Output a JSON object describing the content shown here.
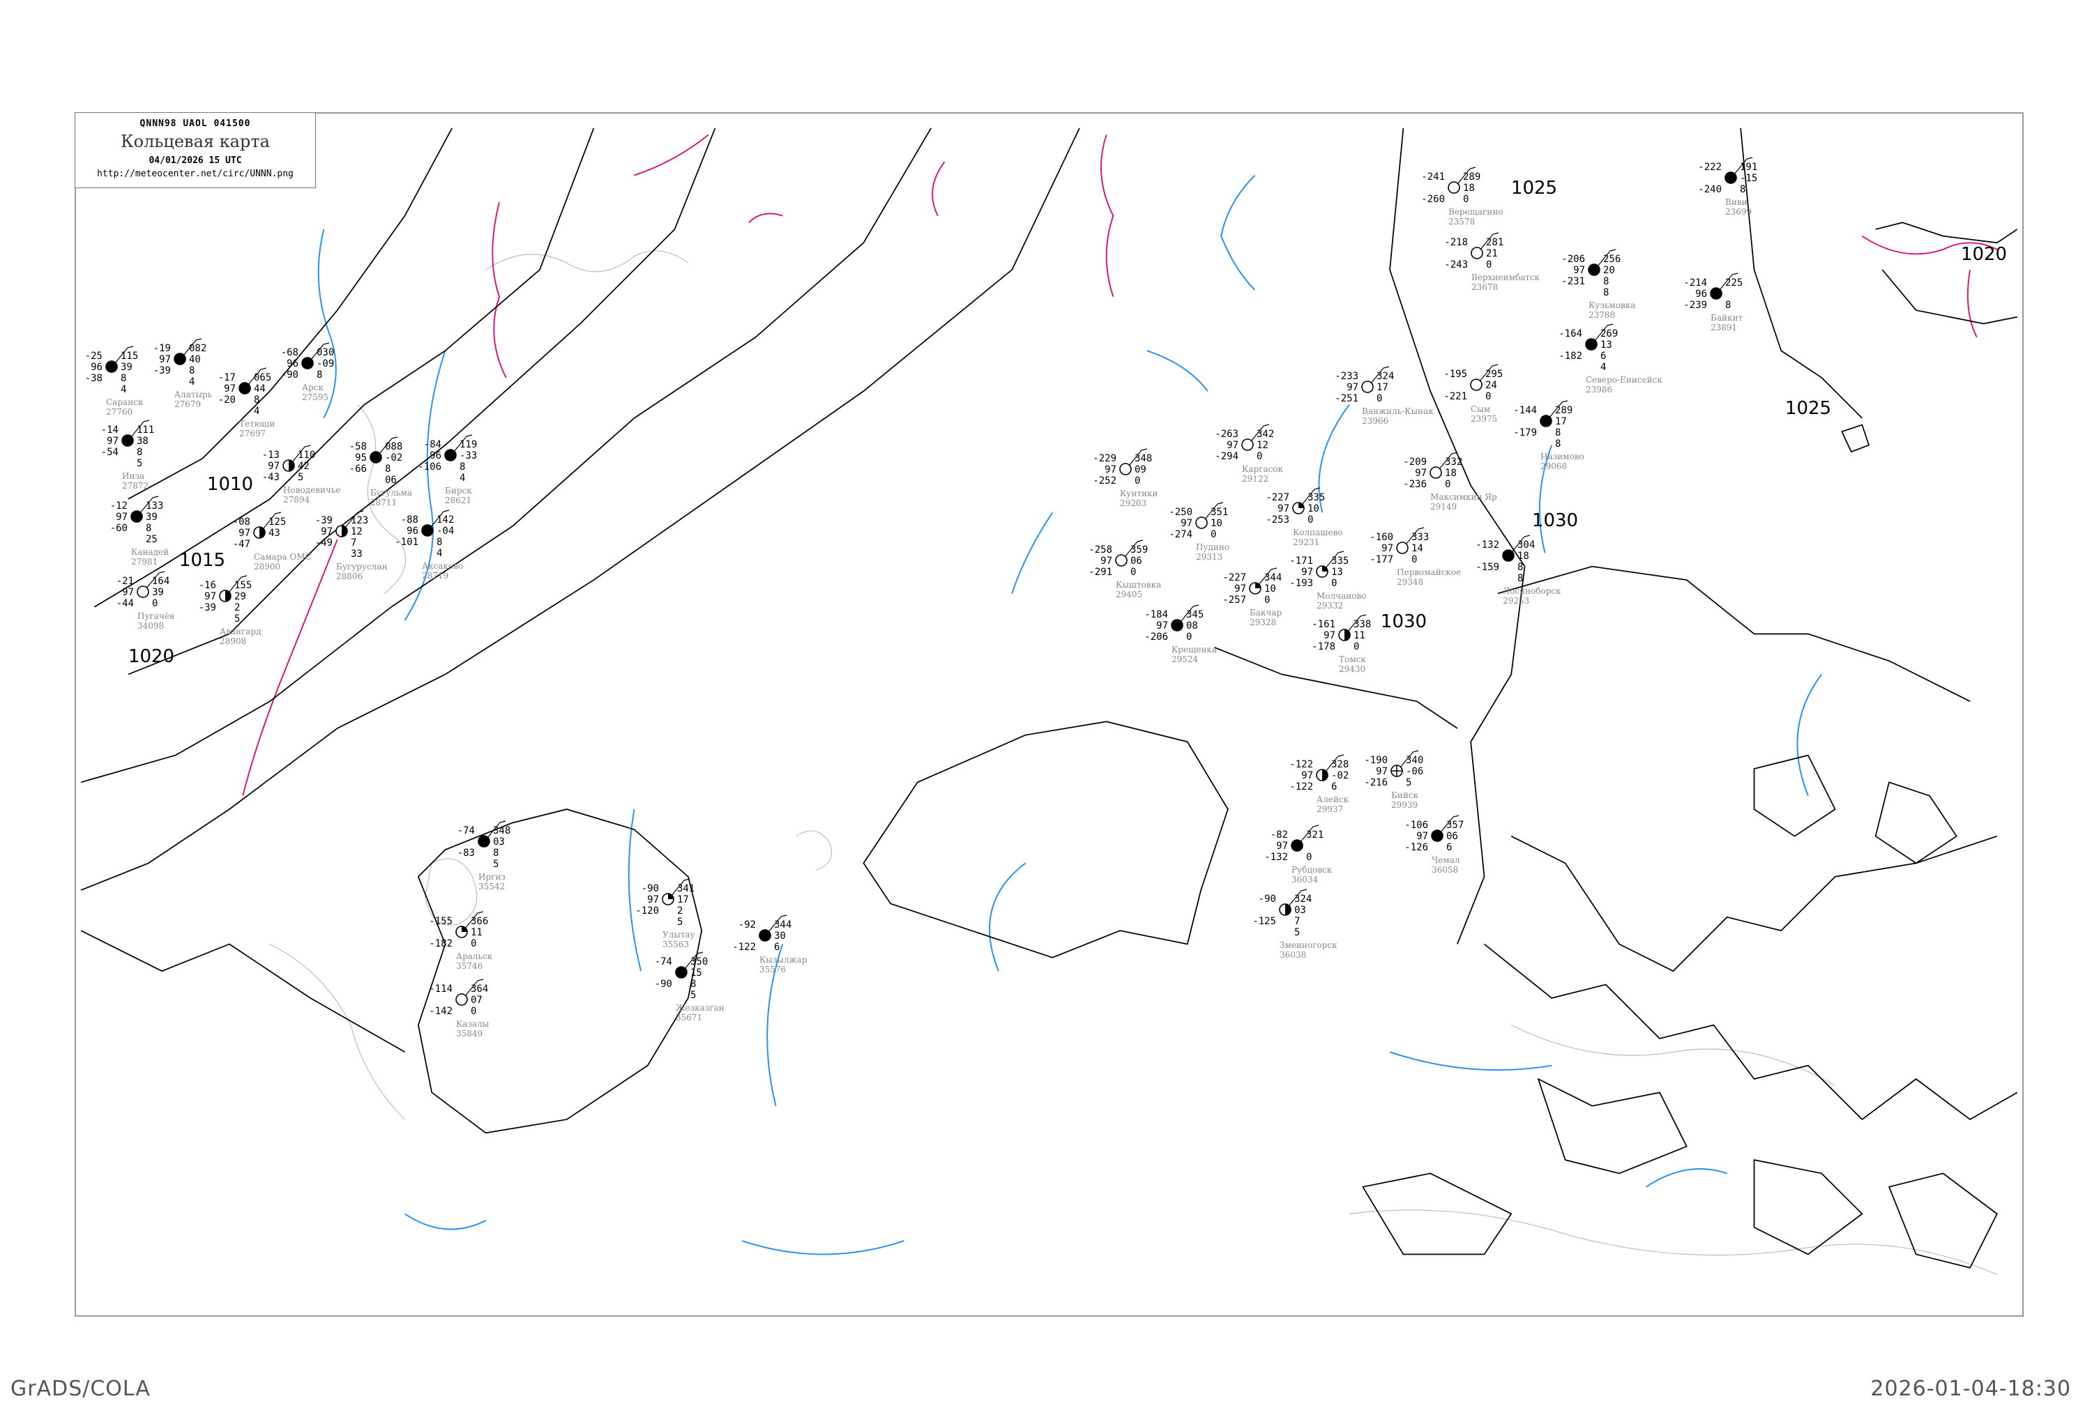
{
  "header": {
    "code": "QNNN98   UAOL   041500",
    "title": "Кольцевая карта",
    "date": "04/01/2026 15 UTC",
    "url": "http://meteocenter.net/circ/UNNN.png"
  },
  "footer": {
    "left": "GrADS/COLA",
    "right": "2026-01-04-18:30"
  },
  "colors": {
    "isobar": "#000000",
    "isotherm_zero": "#1e90ff",
    "isotherm_warm": "#e0107a",
    "coast": "#aaaaaa",
    "station_name": "#888888",
    "snow_marker": "#3a8fe8",
    "fog_marker": "#ffff99"
  },
  "isobar_labels": [
    "1010",
    "1015",
    "1020",
    "1025",
    "1025",
    "1020",
    "1030",
    "1030"
  ],
  "stations": [
    {
      "name": "Саранск",
      "id": "27760",
      "t": "-25",
      "p": "115",
      "vis": "96",
      "tend": "39",
      "td": "-38",
      "extra": [
        "8",
        "4"
      ],
      "cover": "full"
    },
    {
      "name": "Инза",
      "id": "27872",
      "t": "-14",
      "p": "111",
      "vis": "97",
      "tend": "38",
      "td": "-54",
      "extra": [
        "8",
        "5"
      ],
      "cover": "full"
    },
    {
      "name": "Алатырь",
      "id": "27679",
      "t": "-19",
      "p": "082",
      "vis": "97",
      "tend": "40",
      "td": "-39",
      "extra": [
        "8",
        "4"
      ],
      "cover": "full"
    },
    {
      "name": "Тетюши",
      "id": "27697",
      "t": "-17",
      "p": "065",
      "vis": "97",
      "tend": "44",
      "td": "-20",
      "extra": [
        "8",
        "4"
      ],
      "cover": "full"
    },
    {
      "name": "Канадей",
      "id": "27981",
      "t": "-12",
      "p": "133",
      "vis": "97",
      "tend": "39",
      "td": "-60",
      "extra": [
        "8",
        "25"
      ],
      "cover": "full"
    },
    {
      "name": "Новодевичье",
      "id": "27894",
      "t": "-13",
      "p": "110",
      "vis": "97",
      "tend": "42",
      "td": "-43",
      "extra": [
        "5"
      ],
      "cover": "half"
    },
    {
      "name": "Самара ОМС",
      "id": "28900",
      "t": "-08",
      "p": "125",
      "vis": "97",
      "tend": "43",
      "td": "-47",
      "extra": [],
      "cover": "half"
    },
    {
      "name": "Пугачёв",
      "id": "34098",
      "t": "-21",
      "p": "164",
      "vis": "97",
      "tend": "39",
      "td": "-44",
      "extra": [
        "0"
      ],
      "cover": "empty"
    },
    {
      "name": "Авангард",
      "id": "28908",
      "t": "-16",
      "p": "155",
      "vis": "97",
      "tend": "29",
      "td": "-39",
      "extra": [
        "2",
        "5"
      ],
      "cover": "half"
    },
    {
      "name": "Бугуруслан",
      "id": "28806",
      "t": "-39",
      "p": "123",
      "vis": "97",
      "tend": "12",
      "td": "-49",
      "extra": [
        "7",
        "33"
      ],
      "cover": "half"
    },
    {
      "name": "Бугульма",
      "id": "28711",
      "t": "-58",
      "p": "088",
      "vis": "95",
      "tend": "-02",
      "td": "-66",
      "extra": [
        "8",
        "06"
      ],
      "cover": "full"
    },
    {
      "name": "Аксаково",
      "id": "28719",
      "t": "-88",
      "p": "142",
      "vis": "96",
      "tend": "-04",
      "td": "-101",
      "extra": [
        "8",
        "4"
      ],
      "cover": "full"
    },
    {
      "name": "Бирск",
      "id": "28621",
      "t": "-84",
      "p": "119",
      "vis": "96",
      "tend": "-33",
      "td": "-106",
      "extra": [
        "8",
        "4"
      ],
      "cover": "full"
    },
    {
      "name": "Арск",
      "id": "27595",
      "t": "-68",
      "p": "030",
      "vis": "96",
      "tend": "-09",
      "td": "-90",
      "extra": [
        "8"
      ],
      "cover": "full"
    },
    {
      "name": "Иргиз",
      "id": "35542",
      "t": "-74",
      "p": "348",
      "vis": "",
      "tend": "03",
      "td": "-83",
      "extra": [
        "8",
        "5"
      ],
      "cover": "full"
    },
    {
      "name": "Улытау",
      "id": "35563",
      "t": "-90",
      "p": "341",
      "vis": "97",
      "tend": "17",
      "td": "-120",
      "extra": [
        "2",
        "5"
      ],
      "cover": "quarter"
    },
    {
      "name": "Аральск",
      "id": "35746",
      "t": "-155",
      "p": "366",
      "vis": "",
      "tend": "11",
      "td": "-182",
      "extra": [
        "0"
      ],
      "cover": "quarter"
    },
    {
      "name": "Жезказган",
      "id": "35671",
      "t": "-74",
      "p": "350",
      "vis": "",
      "tend": "15",
      "td": "-90",
      "extra": [
        "8",
        "5"
      ],
      "cover": "full"
    },
    {
      "name": "Кызылжар",
      "id": "35576",
      "t": "-92",
      "p": "344",
      "vis": "",
      "tend": "30",
      "td": "-122",
      "extra": [
        "6"
      ],
      "cover": "full"
    },
    {
      "name": "Казалы",
      "id": "35849",
      "t": "-114",
      "p": "364",
      "vis": "",
      "tend": "07",
      "td": "-142",
      "extra": [
        "0"
      ],
      "cover": "empty"
    },
    {
      "name": "Кунтики",
      "id": "29203",
      "t": "-229",
      "p": "348",
      "vis": "97",
      "tend": "09",
      "td": "-252",
      "extra": [
        "0"
      ],
      "cover": "empty"
    },
    {
      "name": "Каргасок",
      "id": "29122",
      "t": "-263",
      "p": "342",
      "vis": "97",
      "tend": "12",
      "td": "-294",
      "extra": [
        "0"
      ],
      "cover": "empty"
    },
    {
      "name": "Колпашево",
      "id": "29231",
      "t": "-227",
      "p": "335",
      "vis": "97",
      "tend": "10",
      "td": "-253",
      "extra": [
        "0"
      ],
      "cover": "quarter"
    },
    {
      "name": "Молчаново",
      "id": "29332",
      "t": "-171",
      "p": "335",
      "vis": "97",
      "tend": "13",
      "td": "-193",
      "extra": [
        "0"
      ],
      "cover": "quarter"
    },
    {
      "name": "Пудино",
      "id": "29313",
      "t": "-250",
      "p": "351",
      "vis": "97",
      "tend": "10",
      "td": "-274",
      "extra": [
        "0"
      ],
      "cover": "empty"
    },
    {
      "name": "Бакчар",
      "id": "29328",
      "t": "-227",
      "p": "344",
      "vis": "97",
      "tend": "10",
      "td": "-257",
      "extra": [
        "0"
      ],
      "cover": "quarter"
    },
    {
      "name": "Кыштовка",
      "id": "29405",
      "t": "-258",
      "p": "359",
      "vis": "97",
      "tend": "06",
      "td": "-291",
      "extra": [
        "0"
      ],
      "cover": "empty"
    },
    {
      "name": "Томск",
      "id": "29430",
      "t": "-161",
      "p": "338",
      "vis": "97",
      "tend": "11",
      "td": "-178",
      "extra": [
        "0"
      ],
      "cover": "half"
    },
    {
      "name": "Первомайское",
      "id": "29348",
      "t": "-160",
      "p": "333",
      "vis": "97",
      "tend": "14",
      "td": "-177",
      "extra": [
        "0"
      ],
      "cover": "empty"
    },
    {
      "name": "Крещенка",
      "id": "29524",
      "t": "-184",
      "p": "345",
      "vis": "97",
      "tend": "08",
      "td": "-206",
      "extra": [
        "0"
      ],
      "cover": "full"
    },
    {
      "name": "Ванжиль-Кынак",
      "id": "23966",
      "t": "-233",
      "p": "324",
      "vis": "97",
      "tend": "17",
      "td": "-251",
      "extra": [
        "0"
      ],
      "cover": "empty"
    },
    {
      "name": "Сым",
      "id": "23975",
      "t": "-195",
      "p": "295",
      "vis": "",
      "tend": "24",
      "td": "-221",
      "extra": [
        "0"
      ],
      "cover": "empty"
    },
    {
      "name": "Назимово",
      "id": "29068",
      "t": "-144",
      "p": "289",
      "vis": "",
      "tend": "17",
      "td": "-179",
      "extra": [
        "8",
        "8"
      ],
      "cover": "full"
    },
    {
      "name": "Максимкин Яр",
      "id": "29149",
      "t": "-209",
      "p": "332",
      "vis": "97",
      "tend": "18",
      "td": "-236",
      "extra": [
        "0"
      ],
      "cover": "empty"
    },
    {
      "name": "Лосиноборск",
      "id": "29253",
      "t": "-132",
      "p": "304",
      "vis": "",
      "tend": "18",
      "td": "-159",
      "extra": [
        "8",
        "8"
      ],
      "cover": "full"
    },
    {
      "name": "Северо-Енисейск",
      "id": "23986",
      "t": "-164",
      "p": "269",
      "vis": "",
      "tend": "13",
      "td": "-182",
      "extra": [
        "6",
        "4"
      ],
      "cover": "full"
    },
    {
      "name": "Верещагино",
      "id": "23578",
      "t": "-241",
      "p": "289",
      "vis": "",
      "tend": "18",
      "td": "-260",
      "extra": [
        "0"
      ],
      "cover": "empty"
    },
    {
      "name": "Верхнеимбатск",
      "id": "23678",
      "t": "-218",
      "p": "281",
      "vis": "",
      "tend": "21",
      "td": "-243",
      "extra": [
        "0"
      ],
      "cover": "empty"
    },
    {
      "name": "Кузьмовка",
      "id": "23788",
      "t": "-206",
      "p": "256",
      "vis": "97",
      "tend": "20",
      "td": "-231",
      "extra": [
        "8",
        "8"
      ],
      "cover": "full"
    },
    {
      "name": "Байкит",
      "id": "23891",
      "t": "-214",
      "p": "225",
      "vis": "96",
      "tend": "",
      "td": "-239",
      "extra": [
        "8"
      ],
      "cover": "full"
    },
    {
      "name": "Виви",
      "id": "23699",
      "t": "-222",
      "p": "191",
      "vis": "",
      "tend": "-15",
      "td": "-240",
      "extra": [
        "8"
      ],
      "cover": "full"
    },
    {
      "name": "Алейск",
      "id": "29937",
      "t": "-122",
      "p": "328",
      "vis": "97",
      "tend": "-02",
      "td": "-122",
      "extra": [
        "6"
      ],
      "cover": "half"
    },
    {
      "name": "Бийск",
      "id": "29939",
      "t": "-190",
      "p": "340",
      "vis": "97",
      "tend": "-06",
      "td": "-216",
      "extra": [
        "5"
      ],
      "cover": "obscured"
    },
    {
      "name": "Рубцовск",
      "id": "36034",
      "t": "-82",
      "p": "321",
      "vis": "97",
      "tend": "",
      "td": "-132",
      "extra": [
        "0"
      ],
      "cover": "full"
    },
    {
      "name": "Змеиногорск",
      "id": "36038",
      "t": "-90",
      "p": "324",
      "vis": "",
      "tend": "03",
      "td": "-125",
      "extra": [
        "7",
        "5"
      ],
      "cover": "half"
    },
    {
      "name": "Чемал",
      "id": "36058",
      "t": "-106",
      "p": "357",
      "vis": "97",
      "tend": "06",
      "td": "-126",
      "extra": [
        "6"
      ],
      "cover": "full"
    }
  ]
}
